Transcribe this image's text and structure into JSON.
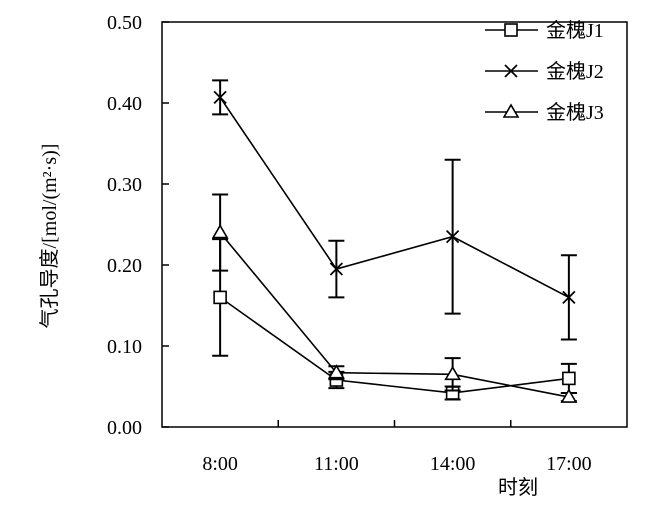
{
  "chart_data": {
    "type": "line",
    "title": "",
    "xlabel": "时刻",
    "ylabel": "气孔导度/[mol/(m²·s)]",
    "categories": [
      "8:00",
      "11:00",
      "14:00",
      "17:00"
    ],
    "ylim": [
      0,
      0.5
    ],
    "yticks": [
      "0.00",
      "0.10",
      "0.20",
      "0.30",
      "0.40",
      "0.50"
    ],
    "grid": false,
    "legend_position": "top-right",
    "series": [
      {
        "name": "金槐J1",
        "marker": "square",
        "values": [
          0.16,
          0.058,
          0.042,
          0.06
        ],
        "error": [
          0.072,
          0.01,
          0.008,
          0.018
        ]
      },
      {
        "name": "金槐J2",
        "marker": "x",
        "values": [
          0.407,
          0.195,
          0.235,
          0.16
        ],
        "error": [
          0.021,
          0.035,
          0.095,
          0.052
        ]
      },
      {
        "name": "金槐J3",
        "marker": "triangle",
        "values": [
          0.24,
          0.067,
          0.065,
          0.037
        ],
        "error": [
          0.047,
          0.008,
          0.02,
          0.005
        ]
      }
    ]
  }
}
